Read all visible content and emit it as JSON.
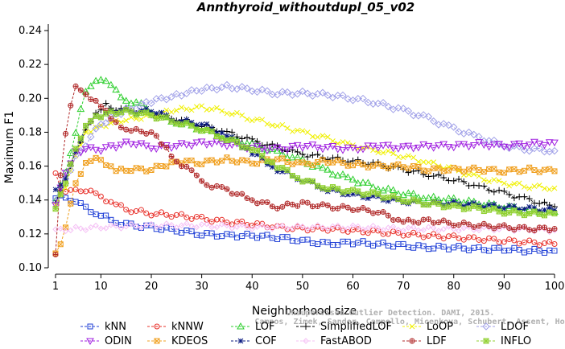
{
  "chart_data": {
    "type": "line",
    "title": "Annthyroid_withoutdupl_05_v02",
    "xlabel": "Neighborhood size",
    "ylabel": "Maximum F1",
    "xlim": [
      1,
      100
    ],
    "ylim": [
      0.1,
      0.24
    ],
    "xticks": [
      1,
      10,
      20,
      30,
      40,
      50,
      60,
      70,
      80,
      90,
      100
    ],
    "yticks": [
      0.1,
      0.12,
      0.14,
      0.16,
      0.18,
      0.2,
      0.22,
      0.24
    ],
    "yticklabels": [
      "0.10",
      "0.12",
      "0.14",
      "0.16",
      "0.18",
      "0.20",
      "0.22",
      "0.24"
    ],
    "watermark": [
      "Campos, Zimek, Sander, Campello, Micenkova, Schubert, Assent, Houle",
      "Unsupervised Outlier Detection. DAMI, 2015."
    ],
    "series": [
      {
        "name": "kNN",
        "color": "#1f3fd6",
        "marker": "square",
        "points": [
          [
            1,
            0.141
          ],
          [
            3,
            0.142
          ],
          [
            5,
            0.139
          ],
          [
            7,
            0.135
          ],
          [
            10,
            0.131
          ],
          [
            13,
            0.127
          ],
          [
            16,
            0.125
          ],
          [
            20,
            0.124
          ],
          [
            25,
            0.122
          ],
          [
            30,
            0.12
          ],
          [
            35,
            0.119
          ],
          [
            40,
            0.119
          ],
          [
            45,
            0.118
          ],
          [
            50,
            0.116
          ],
          [
            55,
            0.114
          ],
          [
            60,
            0.115
          ],
          [
            65,
            0.114
          ],
          [
            70,
            0.113
          ],
          [
            75,
            0.112
          ],
          [
            80,
            0.112
          ],
          [
            85,
            0.111
          ],
          [
            90,
            0.111
          ],
          [
            95,
            0.11
          ],
          [
            100,
            0.11
          ]
        ]
      },
      {
        "name": "kNNW",
        "color": "#e8302a",
        "marker": "circle",
        "points": [
          [
            1,
            0.157
          ],
          [
            2,
            0.148
          ],
          [
            3,
            0.146
          ],
          [
            5,
            0.145
          ],
          [
            7,
            0.146
          ],
          [
            10,
            0.142
          ],
          [
            13,
            0.137
          ],
          [
            16,
            0.134
          ],
          [
            20,
            0.132
          ],
          [
            25,
            0.131
          ],
          [
            30,
            0.129
          ],
          [
            35,
            0.127
          ],
          [
            40,
            0.126
          ],
          [
            45,
            0.124
          ],
          [
            50,
            0.123
          ],
          [
            55,
            0.123
          ],
          [
            60,
            0.122
          ],
          [
            65,
            0.121
          ],
          [
            70,
            0.12
          ],
          [
            75,
            0.119
          ],
          [
            80,
            0.118
          ],
          [
            85,
            0.117
          ],
          [
            90,
            0.116
          ],
          [
            95,
            0.115
          ],
          [
            100,
            0.114
          ]
        ]
      },
      {
        "name": "LOF",
        "color": "#2fcf2f",
        "marker": "triangle",
        "points": [
          [
            1,
            0.14
          ],
          [
            3,
            0.155
          ],
          [
            5,
            0.18
          ],
          [
            7,
            0.205
          ],
          [
            9,
            0.21
          ],
          [
            10,
            0.212
          ],
          [
            12,
            0.207
          ],
          [
            15,
            0.199
          ],
          [
            18,
            0.196
          ],
          [
            20,
            0.192
          ],
          [
            25,
            0.186
          ],
          [
            30,
            0.182
          ],
          [
            35,
            0.176
          ],
          [
            40,
            0.173
          ],
          [
            45,
            0.168
          ],
          [
            50,
            0.163
          ],
          [
            55,
            0.157
          ],
          [
            60,
            0.152
          ],
          [
            65,
            0.147
          ],
          [
            70,
            0.144
          ],
          [
            75,
            0.141
          ],
          [
            80,
            0.14
          ],
          [
            85,
            0.138
          ],
          [
            90,
            0.136
          ],
          [
            95,
            0.134
          ],
          [
            100,
            0.133
          ]
        ]
      },
      {
        "name": "SimplifiedLOF",
        "color": "#000000",
        "marker": "plus",
        "points": [
          [
            1,
            0.139
          ],
          [
            3,
            0.15
          ],
          [
            5,
            0.168
          ],
          [
            7,
            0.182
          ],
          [
            9,
            0.192
          ],
          [
            11,
            0.196
          ],
          [
            13,
            0.194
          ],
          [
            16,
            0.193
          ],
          [
            20,
            0.19
          ],
          [
            25,
            0.188
          ],
          [
            30,
            0.184
          ],
          [
            35,
            0.18
          ],
          [
            40,
            0.175
          ],
          [
            45,
            0.171
          ],
          [
            50,
            0.167
          ],
          [
            55,
            0.165
          ],
          [
            60,
            0.163
          ],
          [
            65,
            0.161
          ],
          [
            70,
            0.158
          ],
          [
            75,
            0.155
          ],
          [
            80,
            0.152
          ],
          [
            85,
            0.148
          ],
          [
            90,
            0.144
          ],
          [
            95,
            0.14
          ],
          [
            100,
            0.136
          ]
        ]
      },
      {
        "name": "LoOP",
        "color": "#f0f000",
        "marker": "cross",
        "points": [
          [
            1,
            0.138
          ],
          [
            3,
            0.148
          ],
          [
            5,
            0.165
          ],
          [
            7,
            0.18
          ],
          [
            10,
            0.184
          ],
          [
            15,
            0.187
          ],
          [
            20,
            0.19
          ],
          [
            25,
            0.193
          ],
          [
            30,
            0.195
          ],
          [
            35,
            0.192
          ],
          [
            40,
            0.188
          ],
          [
            45,
            0.184
          ],
          [
            50,
            0.18
          ],
          [
            55,
            0.176
          ],
          [
            60,
            0.172
          ],
          [
            65,
            0.169
          ],
          [
            70,
            0.166
          ],
          [
            75,
            0.162
          ],
          [
            80,
            0.158
          ],
          [
            85,
            0.153
          ],
          [
            90,
            0.15
          ],
          [
            95,
            0.148
          ],
          [
            100,
            0.147
          ]
        ]
      },
      {
        "name": "LDOF",
        "color": "#a0a0e8",
        "marker": "diamond",
        "points": [
          [
            1,
            0.14
          ],
          [
            5,
            0.165
          ],
          [
            10,
            0.185
          ],
          [
            15,
            0.193
          ],
          [
            20,
            0.198
          ],
          [
            25,
            0.202
          ],
          [
            30,
            0.205
          ],
          [
            35,
            0.207
          ],
          [
            40,
            0.205
          ],
          [
            45,
            0.203
          ],
          [
            50,
            0.203
          ],
          [
            55,
            0.202
          ],
          [
            60,
            0.2
          ],
          [
            65,
            0.197
          ],
          [
            70,
            0.193
          ],
          [
            75,
            0.188
          ],
          [
            80,
            0.182
          ],
          [
            85,
            0.177
          ],
          [
            90,
            0.172
          ],
          [
            95,
            0.17
          ],
          [
            100,
            0.169
          ]
        ]
      },
      {
        "name": "ODIN",
        "color": "#a020e0",
        "marker": "triangle-down",
        "points": [
          [
            1,
            0.138
          ],
          [
            3,
            0.155
          ],
          [
            5,
            0.168
          ],
          [
            7,
            0.17
          ],
          [
            10,
            0.17
          ],
          [
            13,
            0.172
          ],
          [
            16,
            0.174
          ],
          [
            20,
            0.171
          ],
          [
            25,
            0.172
          ],
          [
            30,
            0.174
          ],
          [
            35,
            0.173
          ],
          [
            40,
            0.171
          ],
          [
            45,
            0.17
          ],
          [
            50,
            0.172
          ],
          [
            55,
            0.171
          ],
          [
            60,
            0.17
          ],
          [
            65,
            0.172
          ],
          [
            70,
            0.171
          ],
          [
            75,
            0.172
          ],
          [
            80,
            0.172
          ],
          [
            85,
            0.173
          ],
          [
            90,
            0.172
          ],
          [
            95,
            0.173
          ],
          [
            100,
            0.174
          ]
        ]
      },
      {
        "name": "KDEOS",
        "color": "#f0a020",
        "marker": "square-x",
        "points": [
          [
            1,
            0.108
          ],
          [
            2,
            0.114
          ],
          [
            3,
            0.125
          ],
          [
            5,
            0.15
          ],
          [
            7,
            0.163
          ],
          [
            10,
            0.164
          ],
          [
            13,
            0.157
          ],
          [
            16,
            0.158
          ],
          [
            20,
            0.158
          ],
          [
            25,
            0.163
          ],
          [
            30,
            0.162
          ],
          [
            35,
            0.164
          ],
          [
            40,
            0.162
          ],
          [
            45,
            0.164
          ],
          [
            50,
            0.161
          ],
          [
            55,
            0.163
          ],
          [
            60,
            0.161
          ],
          [
            65,
            0.16
          ],
          [
            70,
            0.16
          ],
          [
            75,
            0.158
          ],
          [
            80,
            0.158
          ],
          [
            85,
            0.158
          ],
          [
            90,
            0.157
          ],
          [
            95,
            0.158
          ],
          [
            100,
            0.157
          ]
        ]
      },
      {
        "name": "COF",
        "color": "#0a1a80",
        "marker": "star",
        "points": [
          [
            1,
            0.145
          ],
          [
            3,
            0.152
          ],
          [
            5,
            0.168
          ],
          [
            7,
            0.185
          ],
          [
            10,
            0.19
          ],
          [
            13,
            0.193
          ],
          [
            16,
            0.192
          ],
          [
            20,
            0.193
          ],
          [
            25,
            0.187
          ],
          [
            30,
            0.185
          ],
          [
            35,
            0.178
          ],
          [
            40,
            0.168
          ],
          [
            45,
            0.158
          ],
          [
            50,
            0.152
          ],
          [
            55,
            0.146
          ],
          [
            60,
            0.143
          ],
          [
            65,
            0.141
          ],
          [
            70,
            0.139
          ],
          [
            75,
            0.138
          ],
          [
            80,
            0.138
          ],
          [
            85,
            0.137
          ],
          [
            90,
            0.136
          ],
          [
            95,
            0.135
          ],
          [
            100,
            0.134
          ]
        ]
      },
      {
        "name": "FastABOD",
        "color": "#f5c0f5",
        "marker": "diamond-small",
        "points": [
          [
            1,
            0.122
          ],
          [
            5,
            0.123
          ],
          [
            10,
            0.124
          ],
          [
            20,
            0.125
          ],
          [
            30,
            0.125
          ],
          [
            40,
            0.124
          ],
          [
            50,
            0.124
          ],
          [
            60,
            0.124
          ],
          [
            70,
            0.123
          ],
          [
            80,
            0.123
          ],
          [
            90,
            0.123
          ],
          [
            100,
            0.122
          ]
        ]
      },
      {
        "name": "LDF",
        "color": "#b02828",
        "marker": "circle-plus",
        "points": [
          [
            1,
            0.107
          ],
          [
            2,
            0.155
          ],
          [
            3,
            0.178
          ],
          [
            4,
            0.195
          ],
          [
            5,
            0.206
          ],
          [
            7,
            0.203
          ],
          [
            10,
            0.195
          ],
          [
            13,
            0.185
          ],
          [
            16,
            0.181
          ],
          [
            20,
            0.18
          ],
          [
            23,
            0.17
          ],
          [
            25,
            0.163
          ],
          [
            28,
            0.157
          ],
          [
            30,
            0.15
          ],
          [
            35,
            0.146
          ],
          [
            40,
            0.14
          ],
          [
            45,
            0.136
          ],
          [
            50,
            0.138
          ],
          [
            55,
            0.136
          ],
          [
            60,
            0.135
          ],
          [
            65,
            0.133
          ],
          [
            70,
            0.127
          ],
          [
            75,
            0.128
          ],
          [
            80,
            0.126
          ],
          [
            85,
            0.125
          ],
          [
            90,
            0.124
          ],
          [
            95,
            0.123
          ],
          [
            100,
            0.123
          ]
        ]
      },
      {
        "name": "INFLO",
        "color": "#90d030",
        "marker": "square-star",
        "points": [
          [
            1,
            0.136
          ],
          [
            3,
            0.15
          ],
          [
            5,
            0.17
          ],
          [
            7,
            0.185
          ],
          [
            10,
            0.19
          ],
          [
            13,
            0.192
          ],
          [
            16,
            0.192
          ],
          [
            20,
            0.19
          ],
          [
            25,
            0.186
          ],
          [
            30,
            0.182
          ],
          [
            35,
            0.176
          ],
          [
            40,
            0.17
          ],
          [
            45,
            0.16
          ],
          [
            50,
            0.152
          ],
          [
            55,
            0.147
          ],
          [
            60,
            0.145
          ],
          [
            65,
            0.143
          ],
          [
            70,
            0.14
          ],
          [
            75,
            0.138
          ],
          [
            80,
            0.136
          ],
          [
            85,
            0.135
          ],
          [
            90,
            0.133
          ],
          [
            95,
            0.132
          ],
          [
            100,
            0.132
          ]
        ]
      }
    ],
    "legend": {
      "placement": "bottom",
      "columns": 6
    }
  }
}
